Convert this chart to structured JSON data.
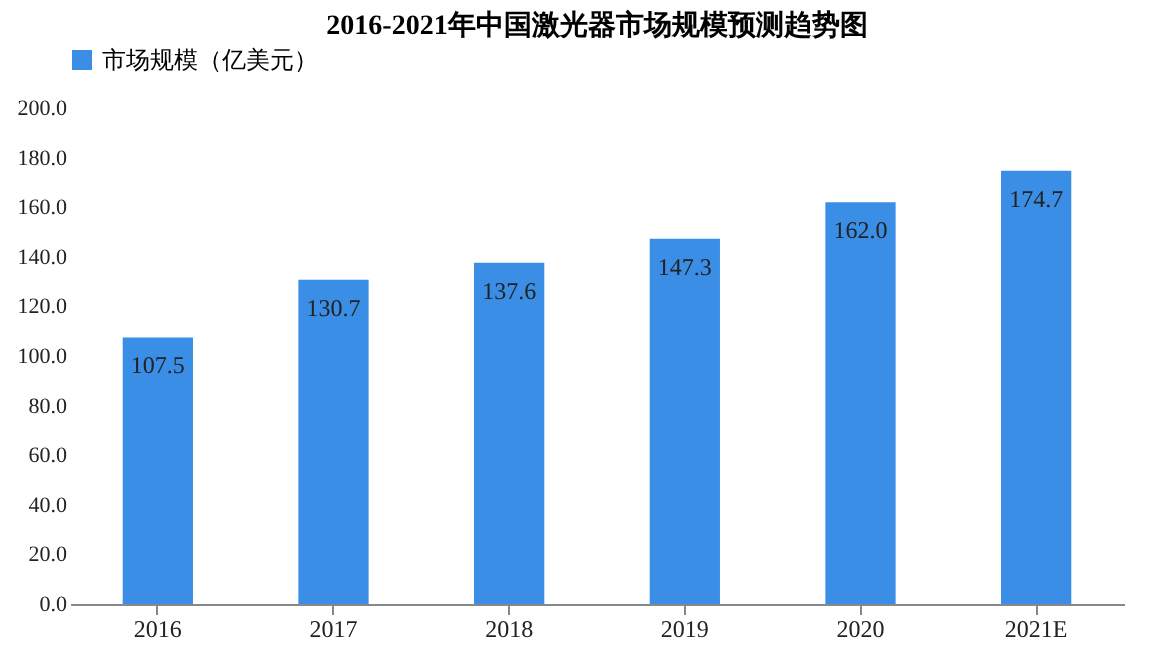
{
  "chart_data": {
    "type": "bar",
    "title": "2016-2021年中国激光器市场规模预测趋势图",
    "categories": [
      "2016",
      "2017",
      "2018",
      "2019",
      "2020",
      "2021E"
    ],
    "series": [
      {
        "name": "市场规模（亿美元）",
        "color": "#3a8ee6",
        "values": [
          107.5,
          130.7,
          137.6,
          147.3,
          162.0,
          174.7
        ],
        "value_labels": [
          "107.5",
          "130.7",
          "137.6",
          "147.3",
          "162.0",
          "174.7"
        ]
      }
    ],
    "ylim": [
      0,
      200
    ],
    "yticks": [
      {
        "value": 0,
        "label": "0.0"
      },
      {
        "value": 20,
        "label": "20.0"
      },
      {
        "value": 40,
        "label": "40.0"
      },
      {
        "value": 60,
        "label": "60.0"
      },
      {
        "value": 80,
        "label": "80.0"
      },
      {
        "value": 100,
        "label": "100.0"
      },
      {
        "value": 120,
        "label": "120.0"
      },
      {
        "value": 140,
        "label": "140.0"
      },
      {
        "value": 160,
        "label": "160.0"
      },
      {
        "value": 180,
        "label": "180.0"
      },
      {
        "value": 200,
        "label": "200.0"
      }
    ],
    "grid": false,
    "legend": "top"
  }
}
